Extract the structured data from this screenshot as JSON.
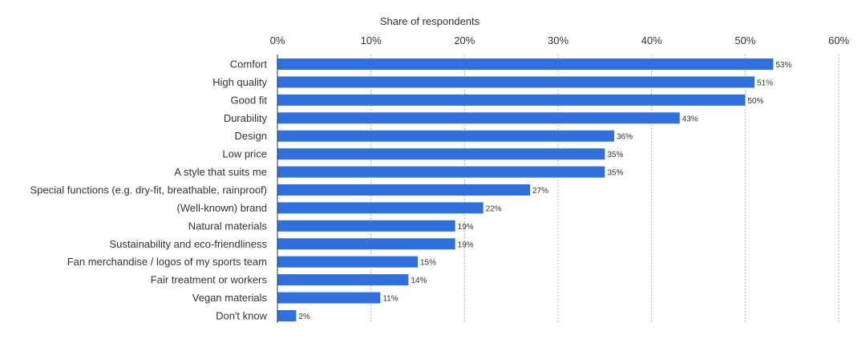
{
  "chart_data": {
    "type": "bar",
    "orientation": "horizontal",
    "xlabel": "Share of respondents",
    "axis_position": "top",
    "xlim": [
      0,
      60
    ],
    "ticks": [
      0,
      10,
      20,
      30,
      40,
      50,
      60
    ],
    "tick_labels": [
      "0%",
      "10%",
      "20%",
      "30%",
      "40%",
      "50%",
      "60%"
    ],
    "grid": true,
    "bar_color": "#2f6fde",
    "categories": [
      "Comfort",
      "High quality",
      "Good fit",
      "Durability",
      "Design",
      "Low price",
      "A style that suits me",
      "Special functions (e.g. dry-fit, breathable, rainproof)",
      "(Well-known) brand",
      "Natural materials",
      "Sustainability and eco-friendliness",
      "Fan merchandise / logos of my sports team",
      "Fair treatment or workers",
      "Vegan materials",
      "Don't know"
    ],
    "values": [
      53,
      51,
      50,
      43,
      36,
      35,
      35,
      27,
      22,
      19,
      19,
      15,
      14,
      11,
      2
    ],
    "value_labels": [
      "53%",
      "51%",
      "50%",
      "43%",
      "36%",
      "35%",
      "35%",
      "27%",
      "22%",
      "19%",
      "19%",
      "15%",
      "14%",
      "11%",
      "2%"
    ]
  }
}
